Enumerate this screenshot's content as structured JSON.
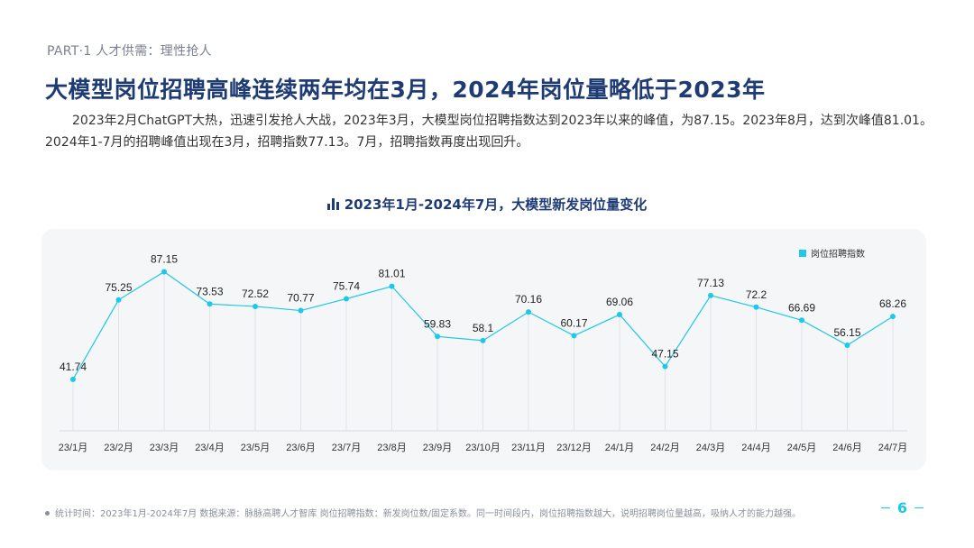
{
  "header": {
    "section": "PART·1  人才供需：理性抢人",
    "title": "大模型岗位招聘高峰连续两年均在3月，2024年岗位量略低于2023年",
    "intro": "2023年2月ChatGPT大热，迅速引发抢人大战，2023年3月，大模型岗位招聘指数达到2023年以来的峰值，为87.15。2023年8月，达到次峰值81.01。2024年1-7月的招聘峰值出现在3月，招聘指数77.13。7月，招聘指数再度出现回升。"
  },
  "chart_data": {
    "type": "line",
    "title": "2023年1月-2024年7月，大模型新发岗位量变化",
    "categories": [
      "23/1月",
      "23/2月",
      "23/3月",
      "23/4月",
      "23/5月",
      "23/6月",
      "23/7月",
      "23/8月",
      "23/9月",
      "23/10月",
      "23/11月",
      "23/12月",
      "24/1月",
      "24/2月",
      "24/3月",
      "24/4月",
      "24/5月",
      "24/6月",
      "24/7月"
    ],
    "series": [
      {
        "name": "岗位招聘指数",
        "values": [
          41.74,
          75.25,
          87.15,
          73.53,
          72.52,
          70.77,
          75.74,
          81.01,
          59.83,
          58.1,
          70.16,
          60.17,
          69.06,
          47.15,
          77.13,
          72.2,
          66.69,
          56.15,
          68.26
        ]
      }
    ],
    "data_labels": [
      "41.74",
      "75.25",
      "87.15",
      "73.53",
      "72.52",
      "70.77",
      "75.74",
      "81.01",
      "59.83",
      "58.1",
      "70.16",
      "60.17",
      "69.06",
      "47.15",
      "77.13",
      "72.2",
      "66.69",
      "56.15",
      "68.26"
    ],
    "ylim": [
      20,
      90
    ],
    "legend": "top-right",
    "color": "#1ec8e8",
    "grid": "vertical"
  },
  "footer": {
    "note": "统计时间：2023年1月-2024年7月    数据来源：脉脉高聘人才智库    岗位招聘指数：新发岗位数/固定系数。同一时间段内，岗位招聘指数越大，说明招聘岗位量越高，吸纳人才的能力越强。",
    "page": "6"
  }
}
